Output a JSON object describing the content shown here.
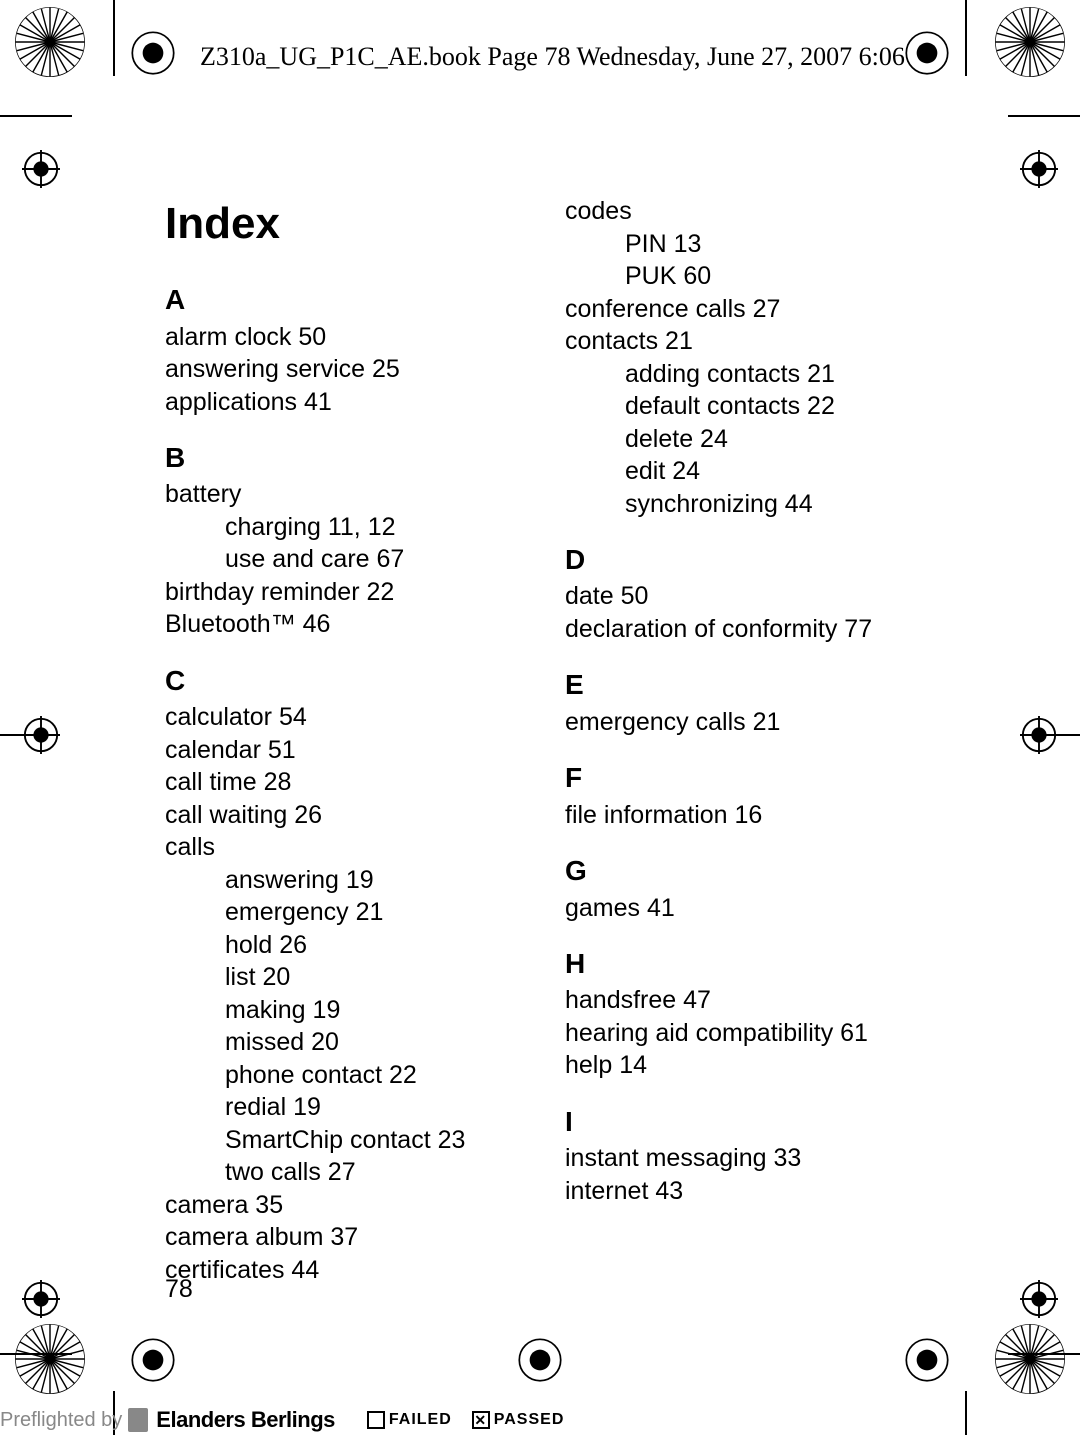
{
  "header": "Z310a_UG_P1C_AE.book  Page 78  Wednesday, June 27, 2007  6:06",
  "title": "Index",
  "page_number": "78",
  "col1": {
    "sections": [
      {
        "letter": "A",
        "entries": [
          {
            "t": "alarm clock 50"
          },
          {
            "t": "answering service 25"
          },
          {
            "t": "applications 41"
          }
        ]
      },
      {
        "letter": "B",
        "entries": [
          {
            "t": "battery"
          },
          {
            "t": "charging 11, 12",
            "sub": true
          },
          {
            "t": "use and care 67",
            "sub": true
          },
          {
            "t": "birthday reminder 22"
          },
          {
            "t": "Bluetooth™ 46"
          }
        ]
      },
      {
        "letter": "C",
        "entries": [
          {
            "t": "calculator 54"
          },
          {
            "t": "calendar 51"
          },
          {
            "t": "call time 28"
          },
          {
            "t": "call waiting 26"
          },
          {
            "t": "calls"
          },
          {
            "t": "answering 19",
            "sub": true
          },
          {
            "t": "emergency 21",
            "sub": true
          },
          {
            "t": "hold 26",
            "sub": true
          },
          {
            "t": "list 20",
            "sub": true
          },
          {
            "t": "making 19",
            "sub": true
          },
          {
            "t": "missed 20",
            "sub": true
          },
          {
            "t": "phone contact 22",
            "sub": true
          },
          {
            "t": "redial 19",
            "sub": true
          },
          {
            "t": "SmartChip contact 23",
            "sub": true
          },
          {
            "t": "two calls 27",
            "sub": true
          },
          {
            "t": "camera 35"
          },
          {
            "t": "camera album 37"
          },
          {
            "t": "certificates 44"
          }
        ]
      }
    ]
  },
  "col2": {
    "sections": [
      {
        "letter": "",
        "entries": [
          {
            "t": "codes"
          },
          {
            "t": "PIN 13",
            "sub": true
          },
          {
            "t": "PUK 60",
            "sub": true
          },
          {
            "t": "conference calls 27"
          },
          {
            "t": "contacts 21"
          },
          {
            "t": "adding contacts 21",
            "sub": true
          },
          {
            "t": "default contacts 22",
            "sub": true
          },
          {
            "t": "delete 24",
            "sub": true
          },
          {
            "t": "edit 24",
            "sub": true
          },
          {
            "t": "synchronizing 44",
            "sub": true
          }
        ]
      },
      {
        "letter": "D",
        "entries": [
          {
            "t": "date 50"
          },
          {
            "t": "declaration of conformity 77"
          }
        ]
      },
      {
        "letter": "E",
        "entries": [
          {
            "t": "emergency calls 21"
          }
        ]
      },
      {
        "letter": "F",
        "entries": [
          {
            "t": "file information 16"
          }
        ]
      },
      {
        "letter": "G",
        "entries": [
          {
            "t": "games 41"
          }
        ]
      },
      {
        "letter": "H",
        "entries": [
          {
            "t": "handsfree 47"
          },
          {
            "t": "hearing aid compatibility 61"
          },
          {
            "t": "help 14"
          }
        ]
      },
      {
        "letter": "I",
        "entries": [
          {
            "t": "instant messaging 33"
          },
          {
            "t": "internet 43"
          }
        ]
      }
    ]
  },
  "preflight": {
    "label": "Preflighted by",
    "brand": "Elanders Berlings",
    "failed": "FAILED",
    "passed": "PASSED"
  }
}
